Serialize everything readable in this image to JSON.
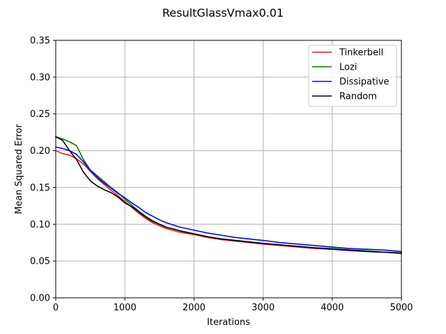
{
  "chart_data": {
    "type": "line",
    "title": "ResultGlassVmax0.01",
    "xlabel": "Iterations",
    "ylabel": "Mean Squared Error",
    "xlim": [
      0,
      5000
    ],
    "ylim": [
      0,
      0.35
    ],
    "xticks": [
      "0",
      "1000",
      "2000",
      "3000",
      "4000",
      "5000"
    ],
    "yticks": [
      "0.00",
      "0.05",
      "0.10",
      "0.15",
      "0.20",
      "0.25",
      "0.30",
      "0.35"
    ],
    "grid": true,
    "legend_position": "top-right",
    "x": [
      0,
      100,
      200,
      300,
      400,
      500,
      600,
      700,
      800,
      900,
      1000,
      1100,
      1200,
      1300,
      1400,
      1500,
      1600,
      1800,
      2000,
      2200,
      2400,
      2600,
      2800,
      3000,
      3250,
      3500,
      3750,
      4000,
      4250,
      4500,
      4750,
      5000
    ],
    "series": [
      {
        "name": "Tinkerbell",
        "color": "#e41a1c",
        "values": [
          0.2,
          0.196,
          0.194,
          0.189,
          0.182,
          0.172,
          0.162,
          0.154,
          0.146,
          0.139,
          0.131,
          0.123,
          0.115,
          0.108,
          0.102,
          0.098,
          0.094,
          0.089,
          0.086,
          0.082,
          0.079,
          0.077,
          0.075,
          0.073,
          0.071,
          0.069,
          0.067,
          0.066,
          0.064,
          0.063,
          0.062,
          0.06
        ]
      },
      {
        "name": "Lozi",
        "color": "#008000",
        "values": [
          0.219,
          0.216,
          0.212,
          0.207,
          0.188,
          0.174,
          0.166,
          0.158,
          0.15,
          0.143,
          0.134,
          0.126,
          0.118,
          0.111,
          0.105,
          0.1,
          0.096,
          0.091,
          0.087,
          0.083,
          0.08,
          0.078,
          0.076,
          0.074,
          0.072,
          0.07,
          0.068,
          0.067,
          0.065,
          0.064,
          0.062,
          0.061
        ]
      },
      {
        "name": "Dissipative",
        "color": "#0000ff",
        "values": [
          0.205,
          0.203,
          0.2,
          0.195,
          0.185,
          0.173,
          0.164,
          0.156,
          0.149,
          0.142,
          0.136,
          0.129,
          0.123,
          0.116,
          0.111,
          0.106,
          0.102,
          0.096,
          0.092,
          0.088,
          0.085,
          0.082,
          0.08,
          0.078,
          0.075,
          0.073,
          0.071,
          0.069,
          0.067,
          0.066,
          0.065,
          0.063
        ]
      },
      {
        "name": "Random",
        "color": "#000000",
        "values": [
          0.219,
          0.214,
          0.2,
          0.188,
          0.171,
          0.159,
          0.152,
          0.147,
          0.143,
          0.137,
          0.129,
          0.124,
          0.117,
          0.11,
          0.104,
          0.1,
          0.096,
          0.091,
          0.087,
          0.083,
          0.08,
          0.078,
          0.076,
          0.074,
          0.072,
          0.07,
          0.068,
          0.066,
          0.065,
          0.063,
          0.062,
          0.061
        ]
      }
    ]
  }
}
